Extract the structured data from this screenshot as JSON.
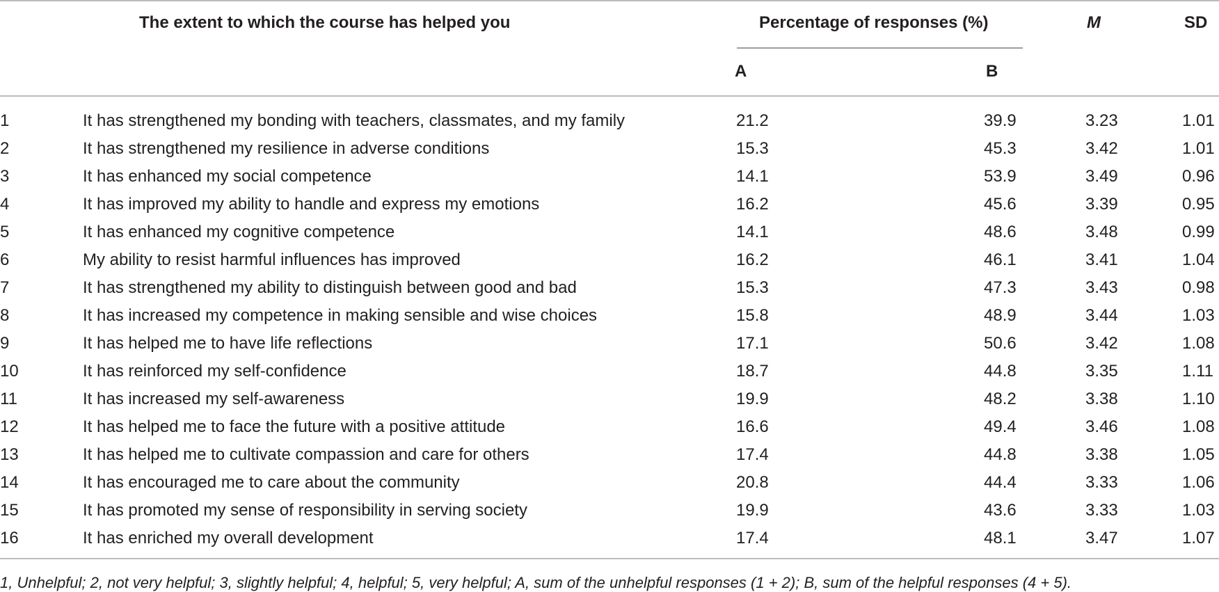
{
  "table": {
    "headers": {
      "item": "The extent to which the course has helped you",
      "percentage": "Percentage of responses (%)",
      "a": "A",
      "b": "B",
      "mean": "M",
      "sd": "SD"
    },
    "rows": [
      {
        "num": "1",
        "item": "It has strengthened my bonding with teachers, classmates, and my family",
        "a": "21.2",
        "b": "39.9",
        "m": "3.23",
        "sd": "1.01"
      },
      {
        "num": "2",
        "item": "It has strengthened my resilience in adverse conditions",
        "a": "15.3",
        "b": "45.3",
        "m": "3.42",
        "sd": "1.01"
      },
      {
        "num": "3",
        "item": "It has enhanced my social competence",
        "a": "14.1",
        "b": "53.9",
        "m": "3.49",
        "sd": "0.96"
      },
      {
        "num": "4",
        "item": "It has improved my ability to handle and express my emotions",
        "a": "16.2",
        "b": "45.6",
        "m": "3.39",
        "sd": "0.95"
      },
      {
        "num": "5",
        "item": "It has enhanced my cognitive competence",
        "a": "14.1",
        "b": "48.6",
        "m": "3.48",
        "sd": "0.99"
      },
      {
        "num": "6",
        "item": "My ability to resist harmful influences has improved",
        "a": "16.2",
        "b": "46.1",
        "m": "3.41",
        "sd": "1.04"
      },
      {
        "num": "7",
        "item": "It has strengthened my ability to distinguish between good and bad",
        "a": "15.3",
        "b": "47.3",
        "m": "3.43",
        "sd": "0.98"
      },
      {
        "num": "8",
        "item": "It has increased my competence in making sensible and wise choices",
        "a": "15.8",
        "b": "48.9",
        "m": "3.44",
        "sd": "1.03"
      },
      {
        "num": "9",
        "item": "It has helped me to have life reflections",
        "a": "17.1",
        "b": "50.6",
        "m": "3.42",
        "sd": "1.08"
      },
      {
        "num": "10",
        "item": "It has reinforced my self-confidence",
        "a": "18.7",
        "b": "44.8",
        "m": "3.35",
        "sd": "1.11"
      },
      {
        "num": "11",
        "item": "It has increased my self-awareness",
        "a": "19.9",
        "b": "48.2",
        "m": "3.38",
        "sd": "1.10"
      },
      {
        "num": "12",
        "item": "It has helped me to face the future with a positive attitude",
        "a": "16.6",
        "b": "49.4",
        "m": "3.46",
        "sd": "1.08"
      },
      {
        "num": "13",
        "item": "It has helped me to cultivate compassion and care for others",
        "a": "17.4",
        "b": "44.8",
        "m": "3.38",
        "sd": "1.05"
      },
      {
        "num": "14",
        "item": "It has encouraged me to care about the community",
        "a": "20.8",
        "b": "44.4",
        "m": "3.33",
        "sd": "1.06"
      },
      {
        "num": "15",
        "item": "It has promoted my sense of responsibility in serving society",
        "a": "19.9",
        "b": "43.6",
        "m": "3.33",
        "sd": "1.03"
      },
      {
        "num": "16",
        "item": "It has enriched my overall development",
        "a": "17.4",
        "b": "48.1",
        "m": "3.47",
        "sd": "1.07"
      }
    ],
    "footnote": "1, Unhelpful; 2, not very helpful; 3, slightly helpful; 4, helpful; 5, very helpful; A, sum of the unhelpful responses (1 + 2); B, sum of the helpful responses (4 + 5)."
  }
}
